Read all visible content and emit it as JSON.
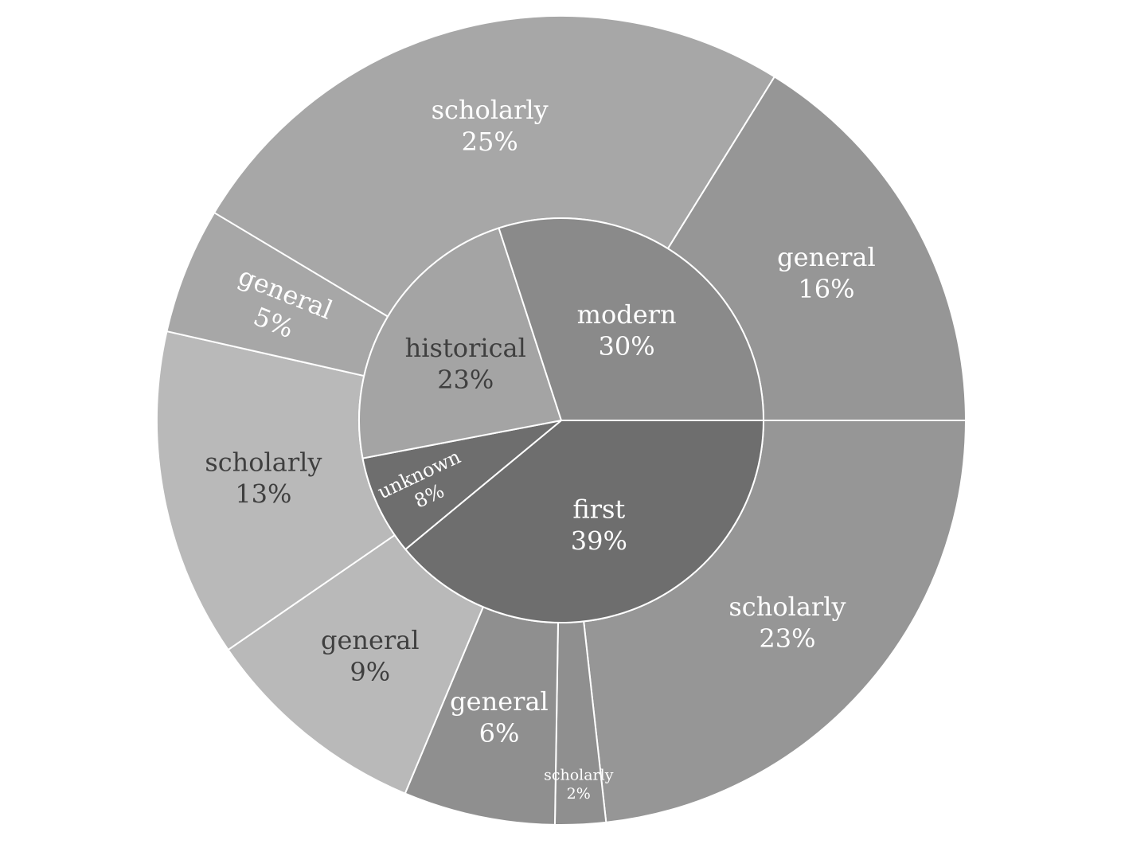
{
  "chart_data": {
    "type": "sunburst",
    "title": "",
    "inner_ring": [
      {
        "name": "first",
        "label": "first",
        "pct_label": "39%",
        "value": 39,
        "color": "#6e6e6e",
        "text_color": "#ffffff"
      },
      {
        "name": "unknown",
        "label": "unknown",
        "pct_label": "8%",
        "value": 8,
        "color": "#6e6e6e",
        "text_color": "#ffffff"
      },
      {
        "name": "historical",
        "label": "historical",
        "pct_label": "23%",
        "value": 23,
        "color": "#a4a4a4",
        "text_color": "#3f3f3f"
      },
      {
        "name": "modern",
        "label": "modern",
        "pct_label": "30%",
        "value": 30,
        "color": "#8a8a8a",
        "text_color": "#ffffff"
      }
    ],
    "outer_ring": [
      {
        "parent": "first",
        "label": "scholarly",
        "pct_label": "23%",
        "value": 23,
        "color": "#969696",
        "text_color": "#ffffff"
      },
      {
        "parent": "unknown",
        "label": "scholarly",
        "pct_label": "2%",
        "value": 2,
        "color": "#8f8f8f",
        "text_color": "#ffffff"
      },
      {
        "parent": "unknown",
        "label": "general",
        "pct_label": "6%",
        "value": 6,
        "color": "#8f8f8f",
        "text_color": "#ffffff"
      },
      {
        "parent": "historical",
        "label": "general",
        "pct_label": "9%",
        "value": 9,
        "color": "#b9b9b9",
        "text_color": "#3f3f3f"
      },
      {
        "parent": "historical",
        "label": "scholarly",
        "pct_label": "13%",
        "value": 13,
        "color": "#b9b9b9",
        "text_color": "#3f3f3f"
      },
      {
        "parent": "modern",
        "label": "general",
        "pct_label": "5%",
        "value": 5,
        "color": "#a7a7a7",
        "text_color": "#ffffff"
      },
      {
        "parent": "modern",
        "label": "scholarly",
        "pct_label": "25%",
        "value": 25,
        "color": "#a7a7a7",
        "text_color": "#ffffff"
      },
      {
        "parent": "first",
        "label": "general",
        "pct_label": "16%",
        "value": 16,
        "color": "#969696",
        "text_color": "#ffffff"
      }
    ],
    "start_angle_deg": 0,
    "direction": "clockwise",
    "legend": "none"
  }
}
